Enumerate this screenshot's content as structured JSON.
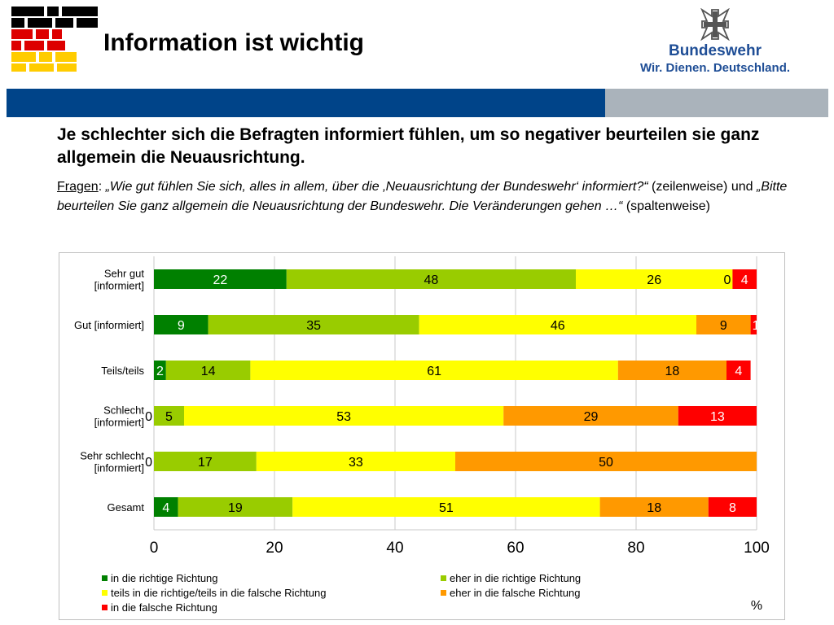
{
  "header": {
    "title": "Information ist wichtig",
    "brand_name": "Bundeswehr",
    "brand_slogan": "Wir. Dienen. Deutschland."
  },
  "headline": "Je schlechter sich die Befragten informiert fühlen, um so negativer beurteilen sie ganz allgemein die Neuausrichtung.",
  "question": {
    "label": "Fragen",
    "colon": ": ",
    "q1": "„Wie gut fühlen Sie sich, alles in allem, über die ‚Neuausrichtung der Bundeswehr‘ informiert?“",
    "q1_note": " (zeilenweise) und ",
    "q2": "„Bitte beurteilen Sie ganz allgemein die Neuausrichtung der Bundeswehr. Die Veränderungen gehen …“",
    "q2_note": " (spaltenweise)"
  },
  "colors": {
    "brand_blue": "#004489",
    "brand_grey": "#aab3bb",
    "text_blue": "#1f4e96"
  },
  "chart_data": {
    "type": "bar",
    "orientation": "horizontal",
    "stacked": true,
    "categories": [
      [
        "Sehr gut",
        "[informiert]"
      ],
      [
        "Gut [informiert]"
      ],
      [
        "Teils/teils"
      ],
      [
        "Schlecht",
        "[informiert]"
      ],
      [
        "Sehr schlecht",
        "[informiert]"
      ],
      [
        "Gesamt"
      ]
    ],
    "series": [
      {
        "name": "in die richtige Richtung",
        "color": "#008000",
        "values": [
          22,
          9,
          2,
          0,
          0,
          4
        ]
      },
      {
        "name": "eher in die richtige Richtung",
        "color": "#99cc00",
        "values": [
          48,
          35,
          14,
          5,
          17,
          19
        ]
      },
      {
        "name": "teils in die richtige/teils in die falsche Richtung",
        "color": "#ffff00",
        "values": [
          26,
          46,
          61,
          53,
          33,
          51
        ]
      },
      {
        "name": "eher in die falsche Richtung",
        "color": "#ff9900",
        "values": [
          0,
          9,
          18,
          29,
          50,
          18
        ]
      },
      {
        "name": "in die falsche Richtung",
        "color": "#ff0000",
        "values": [
          4,
          1,
          4,
          13,
          0,
          8
        ]
      }
    ],
    "xlim": [
      0,
      100
    ],
    "xticks": [
      0,
      20,
      40,
      60,
      80,
      100
    ],
    "xlabel": "%",
    "ylabel": "",
    "grid": "vertical",
    "legend_position": "bottom"
  }
}
